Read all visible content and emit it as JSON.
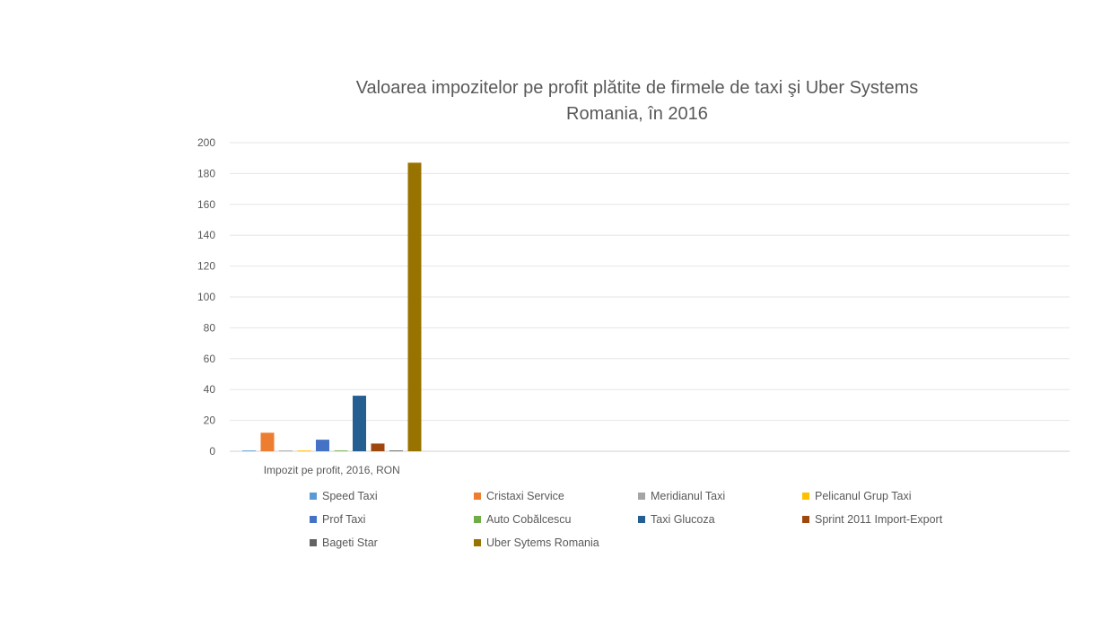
{
  "chart_data": {
    "type": "bar",
    "title": "Valoarea impozitelor pe profit plătite de firmele de taxi şi Uber Systems Romania, în 2016",
    "title_lines": [
      "Valoarea impozitelor pe profit plătite de firmele de taxi şi Uber Systems",
      "Romania, în 2016"
    ],
    "categories": [
      "Impozit pe profit, 2016, RON"
    ],
    "xlabel": "",
    "ylabel": "",
    "ylim": [
      0,
      200
    ],
    "yticks": [
      0,
      20,
      40,
      60,
      80,
      100,
      120,
      140,
      160,
      180,
      200
    ],
    "grid": true,
    "legend_position": "bottom",
    "series": [
      {
        "name": "Speed Taxi",
        "values": [
          0.5
        ],
        "color": "#5b9bd5"
      },
      {
        "name": "Cristaxi Service",
        "values": [
          12
        ],
        "color": "#ed7d31"
      },
      {
        "name": "Meridianul Taxi",
        "values": [
          0.5
        ],
        "color": "#a5a5a5"
      },
      {
        "name": "Pelicanul Grup Taxi",
        "values": [
          0.5
        ],
        "color": "#ffc000"
      },
      {
        "name": "Prof Taxi",
        "values": [
          7.5
        ],
        "color": "#4472c4"
      },
      {
        "name": "Auto Cobălcescu",
        "values": [
          0.5
        ],
        "color": "#70ad47"
      },
      {
        "name": "Taxi Glucoza",
        "values": [
          36
        ],
        "color": "#255e91"
      },
      {
        "name": "Sprint 2011 Import-Export",
        "values": [
          5
        ],
        "color": "#9e480e"
      },
      {
        "name": "Bageti Star",
        "values": [
          0.5
        ],
        "color": "#636363"
      },
      {
        "name": "Uber Sytems Romania",
        "values": [
          187
        ],
        "color": "#997300"
      }
    ]
  }
}
